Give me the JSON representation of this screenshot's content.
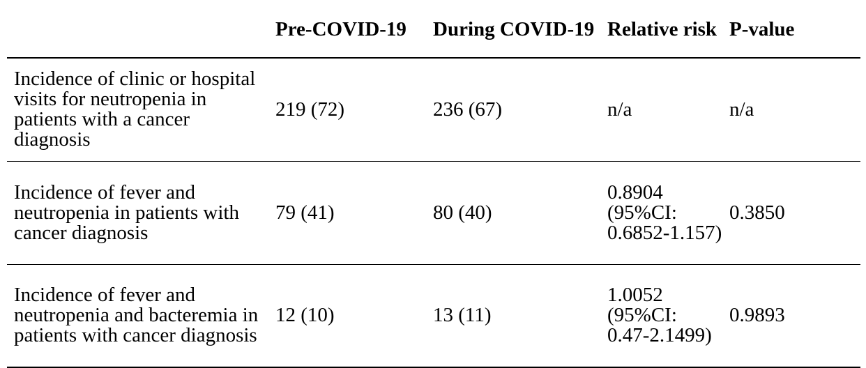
{
  "headers": [
    "",
    "Pre-COVID-19",
    "During COVID-19",
    "Relative risk",
    "P-value"
  ],
  "rows": [
    {
      "label": "Incidence of clinic or hospital visits for neutropenia in patients with a cancer diagnosis",
      "pre": "219 (72)",
      "during": "236 (67)",
      "rr_value": "n/a",
      "rr_ci": "",
      "p": "n/a"
    },
    {
      "label": "Incidence of fever and neutropenia in patients with cancer diagnosis",
      "pre": "79 (41)",
      "during": "80 (40)",
      "rr_value": "0.8904",
      "rr_ci": "(95%CI: 0.6852-1.157)",
      "p": "0.3850"
    },
    {
      "label": "Incidence of fever and neutropenia and bacteremia in patients with cancer diagnosis",
      "pre": "12 (10)",
      "during": "13 (11)",
      "rr_value": "1.0052",
      "rr_ci": "(95%CI: 0.47-2.1499)",
      "p": "0.9893"
    }
  ]
}
